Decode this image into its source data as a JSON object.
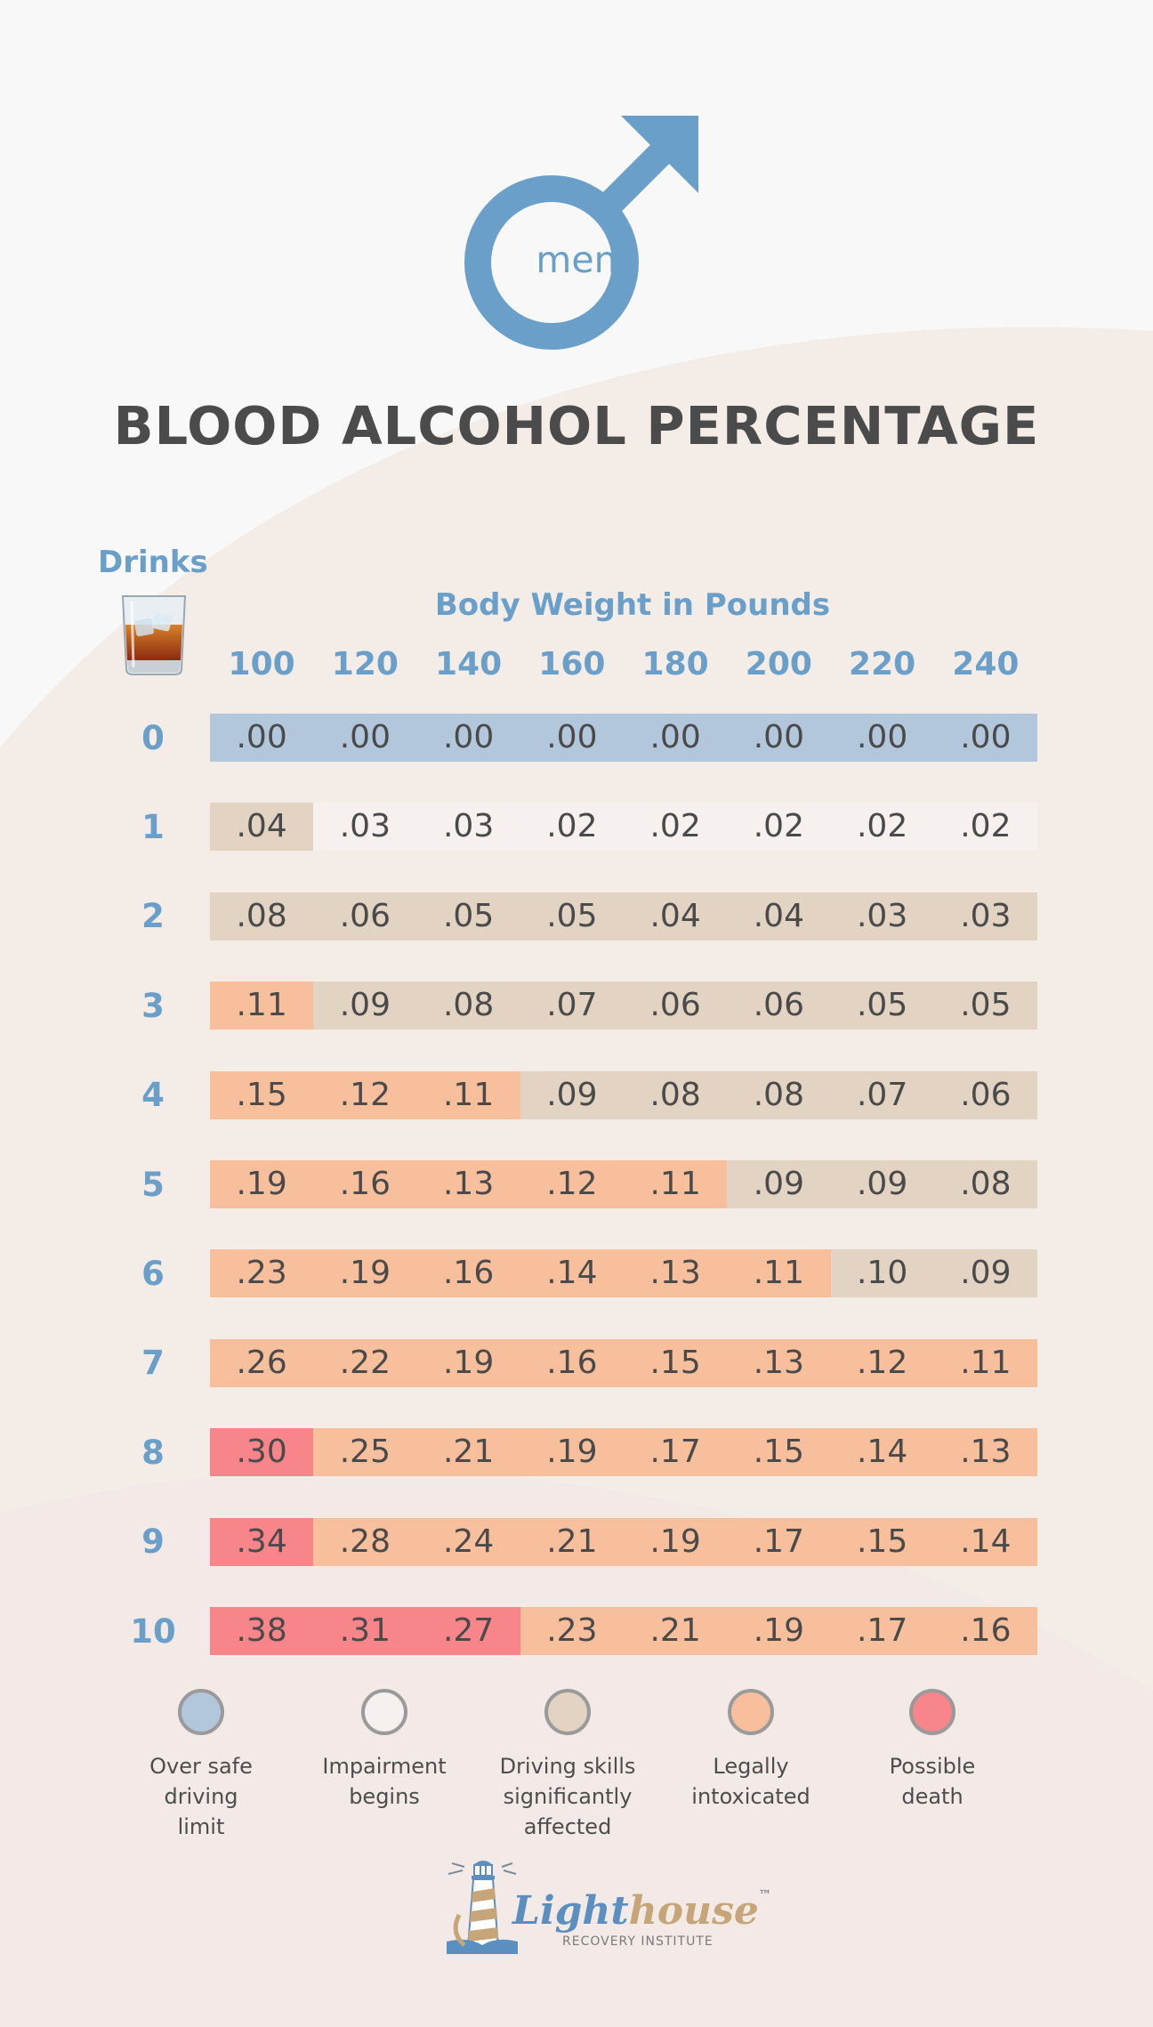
{
  "header": {
    "symbol_word": "men",
    "title": "BLOOD ALCOHOL PERCENTAGE"
  },
  "table": {
    "drinks_label": "Drinks",
    "weight_label": "Body Weight in Pounds",
    "weights": [
      "100",
      "120",
      "140",
      "160",
      "180",
      "200",
      "220",
      "240"
    ],
    "rows": [
      {
        "drinks": "0",
        "values": [
          ".00",
          ".00",
          ".00",
          ".00",
          ".00",
          ".00",
          ".00",
          ".00"
        ],
        "zones": [
          0,
          0,
          0,
          0,
          0,
          0,
          0,
          0
        ]
      },
      {
        "drinks": "1",
        "values": [
          ".04",
          ".03",
          ".03",
          ".02",
          ".02",
          ".02",
          ".02",
          ".02"
        ],
        "zones": [
          2,
          1,
          1,
          1,
          1,
          1,
          1,
          1
        ]
      },
      {
        "drinks": "2",
        "values": [
          ".08",
          ".06",
          ".05",
          ".05",
          ".04",
          ".04",
          ".03",
          ".03"
        ],
        "zones": [
          2,
          2,
          2,
          2,
          2,
          2,
          2,
          2
        ]
      },
      {
        "drinks": "3",
        "values": [
          ".11",
          ".09",
          ".08",
          ".07",
          ".06",
          ".06",
          ".05",
          ".05"
        ],
        "zones": [
          3,
          2,
          2,
          2,
          2,
          2,
          2,
          2
        ]
      },
      {
        "drinks": "4",
        "values": [
          ".15",
          ".12",
          ".11",
          ".09",
          ".08",
          ".08",
          ".07",
          ".06"
        ],
        "zones": [
          3,
          3,
          3,
          2,
          2,
          2,
          2,
          2
        ]
      },
      {
        "drinks": "5",
        "values": [
          ".19",
          ".16",
          ".13",
          ".12",
          ".11",
          ".09",
          ".09",
          ".08"
        ],
        "zones": [
          3,
          3,
          3,
          3,
          3,
          2,
          2,
          2
        ]
      },
      {
        "drinks": "6",
        "values": [
          ".23",
          ".19",
          ".16",
          ".14",
          ".13",
          ".11",
          ".10",
          ".09"
        ],
        "zones": [
          3,
          3,
          3,
          3,
          3,
          3,
          2,
          2
        ]
      },
      {
        "drinks": "7",
        "values": [
          ".26",
          ".22",
          ".19",
          ".16",
          ".15",
          ".13",
          ".12",
          ".11"
        ],
        "zones": [
          3,
          3,
          3,
          3,
          3,
          3,
          3,
          3
        ]
      },
      {
        "drinks": "8",
        "values": [
          ".30",
          ".25",
          ".21",
          ".19",
          ".17",
          ".15",
          ".14",
          ".13"
        ],
        "zones": [
          4,
          3,
          3,
          3,
          3,
          3,
          3,
          3
        ]
      },
      {
        "drinks": "9",
        "values": [
          ".34",
          ".28",
          ".24",
          ".21",
          ".19",
          ".17",
          ".15",
          ".14"
        ],
        "zones": [
          4,
          3,
          3,
          3,
          3,
          3,
          3,
          3
        ]
      },
      {
        "drinks": "10",
        "values": [
          ".38",
          ".31",
          ".27",
          ".23",
          ".21",
          ".19",
          ".17",
          ".16"
        ],
        "zones": [
          4,
          4,
          4,
          3,
          3,
          3,
          3,
          3
        ]
      }
    ]
  },
  "legend": [
    {
      "label": "Over safe\ndriving\nlimit",
      "color": "#b3c7dc"
    },
    {
      "label": "Impairment\nbegins",
      "color": "#f6f1ee"
    },
    {
      "label": "Driving skills\nsignificantly\naffected",
      "color": "#e2d3c3"
    },
    {
      "label": "Legally\nintoxicated",
      "color": "#f8bf9c"
    },
    {
      "label": "Possible\ndeath",
      "color": "#f7858a"
    }
  ],
  "zone_colors": [
    "#b3c7dc",
    "#f6f1ee",
    "#e2d3c3",
    "#f8bf9c",
    "#f7858a"
  ],
  "brand": {
    "name_part1": "Light",
    "name_part2": "house",
    "trademark": "™",
    "subtitle": "RECOVERY INSTITUTE"
  },
  "icons": {
    "header_symbol": "male-symbol-icon",
    "drinks": "whiskey-glass-icon",
    "brand": "lighthouse-logo-icon"
  }
}
